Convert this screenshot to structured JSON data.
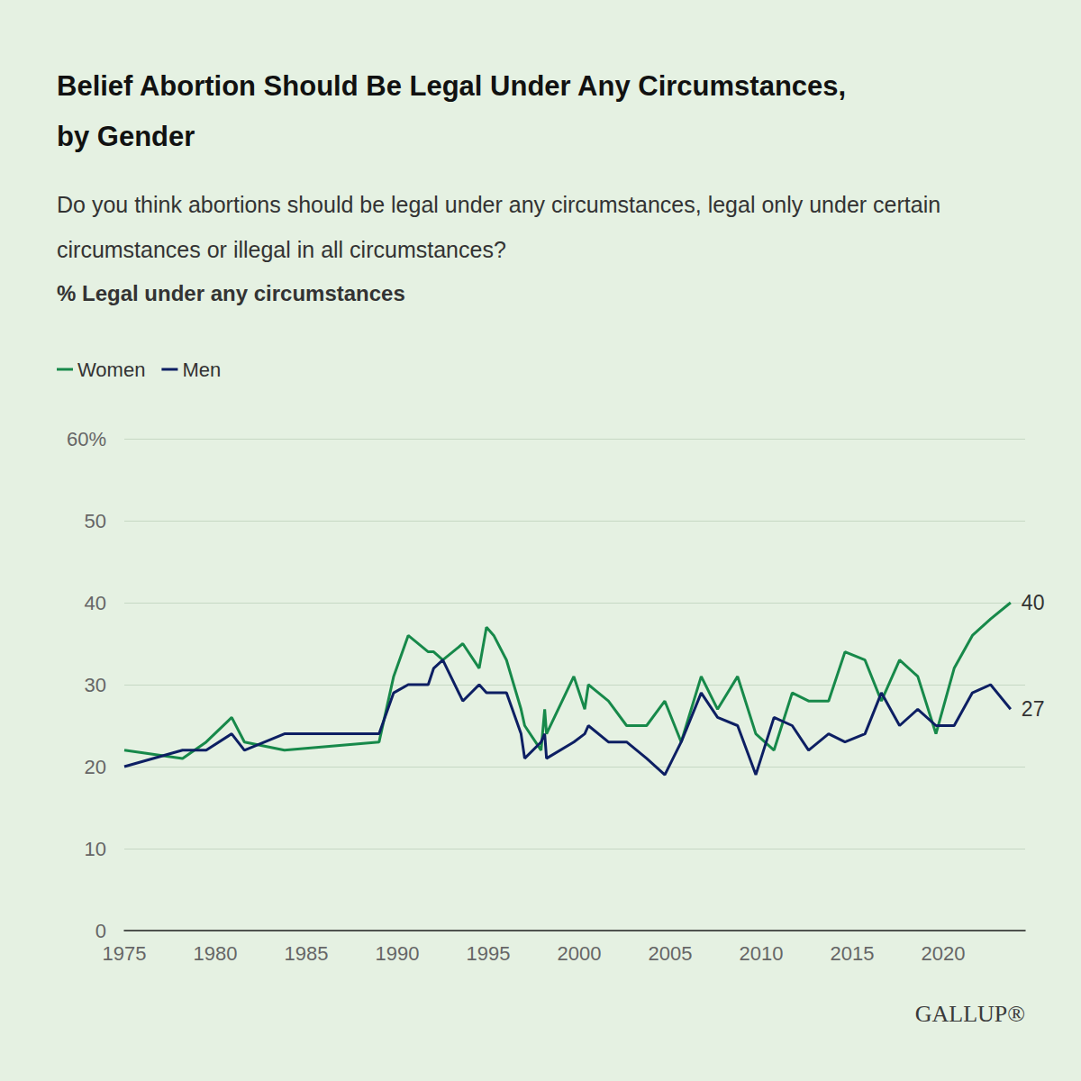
{
  "chart_data": {
    "type": "line",
    "title": "Belief Abortion Should Be Legal Under Any Circumstances, by Gender",
    "subtitle": "Do you think abortions should be legal under any circumstances, legal only under certain circumstances or illegal in all circumstances?",
    "y_label": "% Legal under any circumstances",
    "x": [
      1975,
      1978.2,
      1979.5,
      1980.9,
      1981.6,
      1983.8,
      1989.0,
      1989.8,
      1990.6,
      1991.7,
      1992.0,
      1992.5,
      1993.6,
      1994.5,
      1994.9,
      1995.3,
      1996.0,
      1996.8,
      1997.0,
      1997.9,
      1998.1,
      1998.2,
      1999.7,
      2000.3,
      2000.5,
      2001.6,
      2002.6,
      2003.7,
      2004.7,
      2005.6,
      2006.7,
      2007.6,
      2008.7,
      2009.7,
      2010.7,
      2011.7,
      2012.6,
      2013.7,
      2014.6,
      2015.7,
      2016.6,
      2017.6,
      2018.6,
      2019.6,
      2020.6,
      2021.6,
      2022.6,
      2023.7
    ],
    "series": [
      {
        "name": "Women",
        "color": "#17894a",
        "values": [
          22,
          21,
          23,
          26,
          23,
          22,
          23,
          31,
          36,
          34,
          34,
          33,
          35,
          32,
          37,
          36,
          33,
          27,
          25,
          22,
          27,
          24,
          31,
          27,
          30,
          28,
          25,
          25,
          28,
          23,
          31,
          27,
          31,
          24,
          22,
          29,
          28,
          28,
          34,
          33,
          28,
          33,
          31,
          24,
          32,
          36,
          38,
          40
        ]
      },
      {
        "name": "Men",
        "color": "#0d1f63",
        "values": [
          20,
          22,
          22,
          24,
          22,
          24,
          24,
          29,
          30,
          30,
          32,
          33,
          28,
          30,
          29,
          29,
          29,
          24,
          21,
          23,
          24,
          21,
          23,
          24,
          25,
          23,
          23,
          21,
          19,
          23,
          29,
          26,
          25,
          19,
          26,
          25,
          22,
          24,
          23,
          24,
          29,
          25,
          27,
          25,
          25,
          29,
          30,
          27
        ]
      }
    ],
    "xlim": [
      1975,
      2024.5
    ],
    "xticks": [
      1975,
      1980,
      1985,
      1990,
      1995,
      2000,
      2005,
      2010,
      2015,
      2020
    ],
    "ylim": [
      0,
      60
    ],
    "yticks": [
      0,
      10,
      20,
      30,
      40,
      50,
      {
        "value": 60,
        "label": "60%"
      }
    ],
    "grid": true,
    "legend": "top-left",
    "annotations": [
      {
        "series": "Women",
        "text": "40"
      },
      {
        "series": "Men",
        "text": "27"
      }
    ],
    "source": "GALLUP®"
  }
}
